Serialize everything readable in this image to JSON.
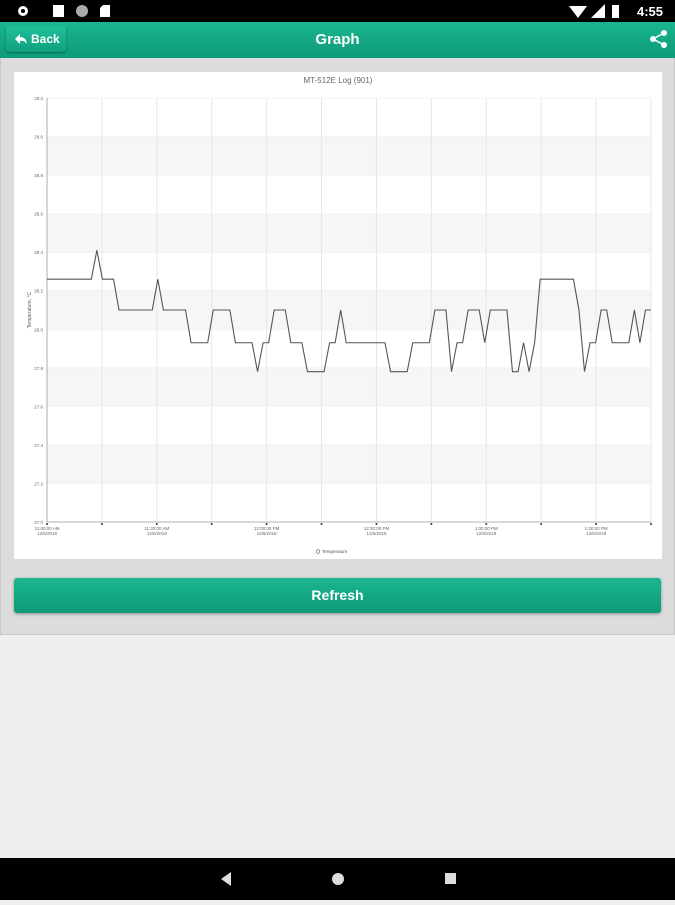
{
  "status_bar": {
    "time": "4:55"
  },
  "app_bar": {
    "back": "Back",
    "title": "Graph"
  },
  "button": {
    "refresh": "Refresh"
  },
  "chart_data": {
    "type": "line",
    "title": "MT-512E Log (901)",
    "ylabel": "Temperature, °C",
    "xtick_labels": [
      [
        "11:00:00 AM",
        "12/6/2018"
      ],
      [
        "11:30:00 AM",
        "12/6/2018"
      ],
      [
        "12:00:00 PM",
        "12/6/2018"
      ],
      [
        "12:30:00 PM",
        "12/6/2018"
      ],
      [
        "1:00:00 PM",
        "12/6/2018"
      ],
      [
        "1:30:00 PM",
        "12/6/2018"
      ]
    ],
    "ylim": [
      27,
      29.2
    ],
    "yticks": [
      {
        "value": 27,
        "label": "27.0"
      },
      27.2,
      27.4,
      27.6,
      27.8,
      {
        "value": 28,
        "label": "28.0"
      },
      28.2,
      28.4,
      28.6,
      28.8,
      {
        "value": 29,
        "label": "29.0"
      },
      29.2
    ],
    "grid": true,
    "legend": "bottom",
    "series": [
      {
        "name": "Temperature",
        "color": "#555555",
        "values": [
          28.26,
          28.26,
          28.26,
          28.26,
          28.26,
          28.26,
          28.26,
          28.26,
          28.26,
          28.41,
          28.26,
          28.26,
          28.26,
          28.1,
          28.1,
          28.1,
          28.1,
          28.1,
          28.1,
          28.1,
          28.26,
          28.1,
          28.1,
          28.1,
          28.1,
          28.1,
          27.93,
          27.93,
          27.93,
          27.93,
          28.1,
          28.1,
          28.1,
          28.1,
          27.93,
          27.93,
          27.93,
          27.93,
          27.78,
          27.93,
          27.93,
          28.1,
          28.1,
          28.1,
          27.93,
          27.93,
          27.93,
          27.78,
          27.78,
          27.78,
          27.78,
          27.93,
          27.93,
          28.1,
          27.93,
          27.93,
          27.93,
          27.93,
          27.93,
          27.93,
          27.93,
          27.93,
          27.78,
          27.78,
          27.78,
          27.78,
          27.93,
          27.93,
          27.93,
          27.93,
          28.1,
          28.1,
          28.1,
          27.78,
          27.93,
          27.93,
          28.1,
          28.1,
          28.1,
          27.93,
          28.1,
          28.1,
          28.1,
          28.1,
          27.78,
          27.78,
          27.93,
          27.78,
          27.93,
          28.26,
          28.26,
          28.26,
          28.26,
          28.26,
          28.26,
          28.26,
          28.1,
          27.78,
          27.93,
          27.93,
          28.1,
          28.1,
          27.93,
          27.93,
          27.93,
          27.93,
          28.1,
          27.93,
          28.1,
          28.1
        ]
      }
    ]
  }
}
